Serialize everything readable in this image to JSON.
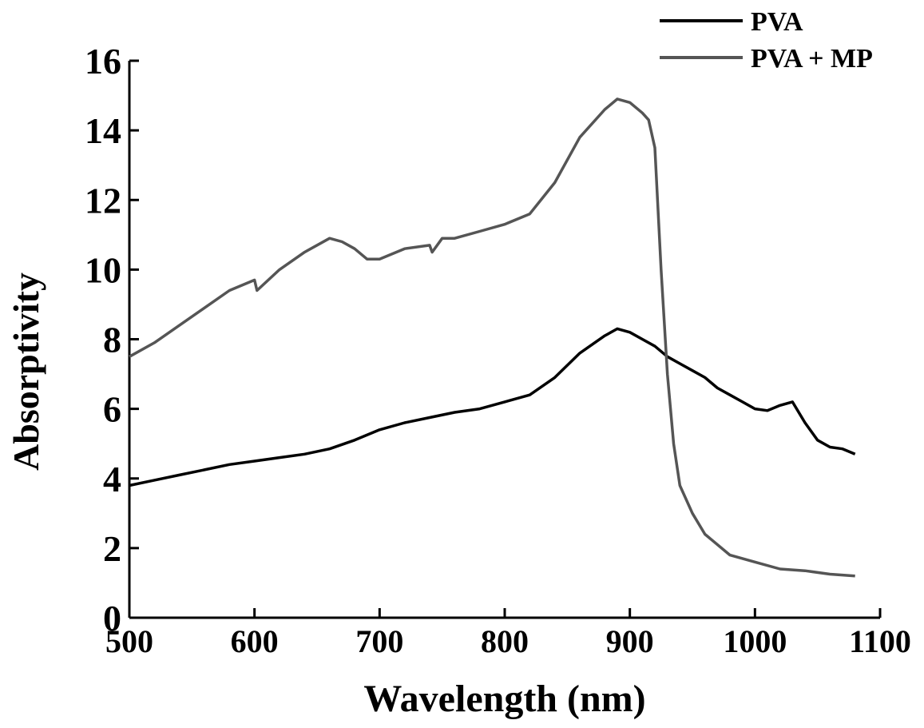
{
  "chart_data": {
    "type": "line",
    "title": "",
    "xlabel": "Wavelength (nm)",
    "ylabel": "Absorptivity",
    "xlim": [
      500,
      1100
    ],
    "ylim": [
      0,
      16
    ],
    "x_ticks": [
      500,
      600,
      700,
      800,
      900,
      1000,
      1100
    ],
    "y_ticks": [
      0,
      2,
      4,
      6,
      8,
      10,
      12,
      14,
      16
    ],
    "grid": false,
    "legend_position": "top-right",
    "series": [
      {
        "name": "PVA",
        "color": "#000000",
        "x": [
          500,
          520,
          540,
          560,
          580,
          600,
          620,
          640,
          660,
          680,
          700,
          720,
          740,
          760,
          780,
          800,
          820,
          840,
          860,
          880,
          890,
          900,
          910,
          920,
          930,
          940,
          950,
          960,
          970,
          980,
          990,
          1000,
          1010,
          1020,
          1030,
          1040,
          1050,
          1060,
          1070,
          1080
        ],
        "y": [
          3.8,
          3.95,
          4.1,
          4.25,
          4.4,
          4.5,
          4.6,
          4.7,
          4.85,
          5.1,
          5.4,
          5.6,
          5.75,
          5.9,
          6.0,
          6.2,
          6.4,
          6.9,
          7.6,
          8.1,
          8.3,
          8.2,
          8.0,
          7.8,
          7.5,
          7.3,
          7.1,
          6.9,
          6.6,
          6.4,
          6.2,
          6.0,
          5.95,
          6.1,
          6.2,
          5.6,
          5.1,
          4.9,
          4.85,
          4.7
        ]
      },
      {
        "name": "PVA + MP",
        "color": "#555555",
        "x": [
          500,
          520,
          540,
          560,
          580,
          600,
          602,
          620,
          640,
          660,
          670,
          680,
          690,
          700,
          720,
          740,
          742,
          750,
          760,
          780,
          800,
          820,
          840,
          860,
          880,
          890,
          900,
          910,
          915,
          920,
          925,
          930,
          935,
          940,
          950,
          960,
          980,
          1000,
          1020,
          1040,
          1060,
          1080
        ],
        "y": [
          7.5,
          7.9,
          8.4,
          8.9,
          9.4,
          9.7,
          9.4,
          10.0,
          10.5,
          10.9,
          10.8,
          10.6,
          10.3,
          10.3,
          10.6,
          10.7,
          10.5,
          10.9,
          10.9,
          11.1,
          11.3,
          11.6,
          12.5,
          13.8,
          14.6,
          14.9,
          14.8,
          14.5,
          14.3,
          13.5,
          10.0,
          7.0,
          5.0,
          3.8,
          3.0,
          2.4,
          1.8,
          1.6,
          1.4,
          1.35,
          1.25,
          1.2
        ]
      }
    ]
  }
}
